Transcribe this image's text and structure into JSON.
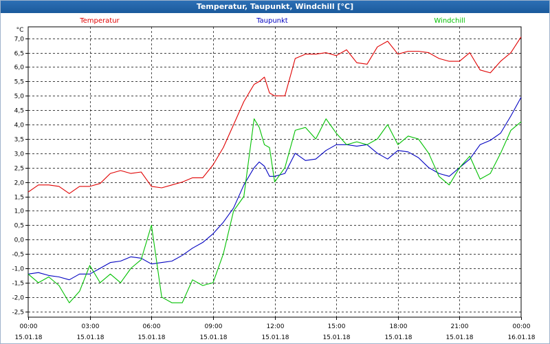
{
  "window": {
    "title": "Temperatur, Taupunkt, Windchill [°C]"
  },
  "chart_data": {
    "type": "line",
    "title": "Temperatur, Taupunkt, Windchill [°C]",
    "ylabel": "°C",
    "ylim": [
      -2.7,
      7.4
    ],
    "yticks": [
      7.0,
      6.5,
      6.0,
      5.5,
      5.0,
      4.5,
      4.0,
      3.5,
      3.0,
      2.5,
      2.0,
      1.5,
      1.0,
      0.5,
      0.0,
      -0.5,
      -1.0,
      -1.5,
      -2.0,
      -2.5
    ],
    "ytick_labels": [
      "7,0",
      "6,5",
      "6,0",
      "5,5",
      "5,0",
      "4,5",
      "4,0",
      "3,5",
      "3,0",
      "2,5",
      "2,0",
      "1,5",
      "1,0",
      "0,5",
      "0,0",
      "-0,5",
      "-1,0",
      "-1,5",
      "-2,0",
      "-2,5"
    ],
    "xlim": [
      0,
      24
    ],
    "xticks": [
      {
        "hour": 0,
        "time": "00:00",
        "date": "15.01.18"
      },
      {
        "hour": 3,
        "time": "03:00",
        "date": "15.01.18"
      },
      {
        "hour": 6,
        "time": "06:00",
        "date": "15.01.18"
      },
      {
        "hour": 9,
        "time": "09:00",
        "date": "15.01.18"
      },
      {
        "hour": 12,
        "time": "12:00",
        "date": "15.01.18"
      },
      {
        "hour": 15,
        "time": "15:00",
        "date": "15.01.18"
      },
      {
        "hour": 18,
        "time": "18:00",
        "date": "15.01.18"
      },
      {
        "hour": 21,
        "time": "21:00",
        "date": "15.01.18"
      },
      {
        "hour": 24,
        "time": "00:00",
        "date": "16.01.18"
      }
    ],
    "x": [
      0,
      0.5,
      1,
      1.5,
      2,
      2.5,
      3,
      3.5,
      4,
      4.5,
      5,
      5.5,
      6,
      6.5,
      7,
      7.5,
      8,
      8.5,
      9,
      9.5,
      10,
      10.5,
      11,
      11.25,
      11.5,
      11.75,
      12,
      12.5,
      13,
      13.5,
      14,
      14.5,
      15,
      15.5,
      16,
      16.5,
      17,
      17.5,
      18,
      18.5,
      19,
      19.5,
      20,
      20.5,
      21,
      21.5,
      22,
      22.5,
      23,
      23.5,
      24
    ],
    "series": [
      {
        "name": "Temperatur",
        "color": "#e00000",
        "values": [
          1.65,
          1.9,
          1.9,
          1.85,
          1.6,
          1.85,
          1.85,
          1.95,
          2.3,
          2.4,
          2.3,
          2.35,
          1.85,
          1.8,
          1.9,
          2.0,
          2.15,
          2.15,
          2.6,
          3.2,
          4.0,
          4.8,
          5.4,
          5.5,
          5.65,
          5.1,
          5.0,
          5.0,
          6.3,
          6.45,
          6.45,
          6.5,
          6.4,
          6.6,
          6.15,
          6.1,
          6.7,
          6.9,
          6.45,
          6.55,
          6.55,
          6.5,
          6.3,
          6.2,
          6.2,
          6.5,
          5.9,
          5.8,
          6.2,
          6.5,
          7.05
        ]
      },
      {
        "name": "Taupunkt",
        "color": "#0000c0",
        "values": [
          -1.2,
          -1.15,
          -1.25,
          -1.3,
          -1.4,
          -1.2,
          -1.2,
          -1.0,
          -0.8,
          -0.75,
          -0.6,
          -0.65,
          -0.85,
          -0.8,
          -0.75,
          -0.55,
          -0.3,
          -0.1,
          0.2,
          0.6,
          1.1,
          1.9,
          2.5,
          2.7,
          2.55,
          2.2,
          2.2,
          2.3,
          3.0,
          2.75,
          2.8,
          3.1,
          3.3,
          3.3,
          3.25,
          3.3,
          3.0,
          2.8,
          3.1,
          3.05,
          2.85,
          2.5,
          2.3,
          2.2,
          2.5,
          2.8,
          3.3,
          3.45,
          3.7,
          4.3,
          4.95
        ]
      },
      {
        "name": "Windchill",
        "color": "#00c000",
        "values": [
          -1.2,
          -1.5,
          -1.3,
          -1.6,
          -2.2,
          -1.8,
          -0.9,
          -1.5,
          -1.2,
          -1.5,
          -1.0,
          -0.7,
          0.5,
          -2.0,
          -2.2,
          -2.2,
          -1.4,
          -1.6,
          -1.5,
          -0.5,
          1.0,
          1.5,
          4.2,
          3.9,
          3.3,
          3.2,
          2.0,
          2.5,
          3.8,
          3.9,
          3.5,
          4.2,
          3.7,
          3.3,
          3.4,
          3.3,
          3.5,
          4.0,
          3.3,
          3.6,
          3.5,
          3.0,
          2.2,
          1.9,
          2.5,
          2.9,
          2.1,
          2.3,
          3.0,
          3.8,
          4.1
        ]
      }
    ]
  }
}
